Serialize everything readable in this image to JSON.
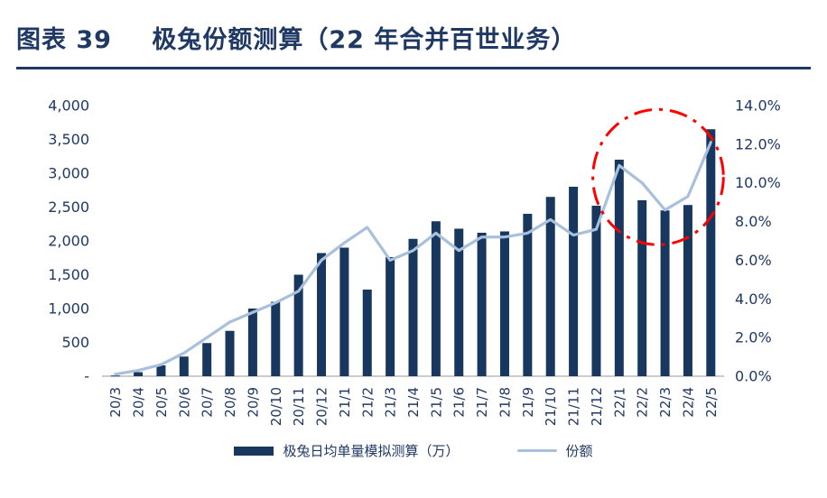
{
  "header": {
    "label": "图表 39",
    "title": "极兔份额测算（22 年合并百世业务）"
  },
  "legend": {
    "bar_label": "极兔日均单量模拟测算（万）",
    "line_label": "份额"
  },
  "colors": {
    "title": "#1F3864",
    "bar": "#17375E",
    "line": "#A9C0DC",
    "axis_text": "#1F3864",
    "axis_line": "#9A9A9A",
    "annotation": "#FF0000",
    "background": "#FFFFFF"
  },
  "chart_data": {
    "type": "bar",
    "subtype": "combo-bar-line",
    "title": "极兔份额测算（22 年合并百世业务）",
    "categories": [
      "20/3",
      "20/4",
      "20/5",
      "20/6",
      "20/7",
      "20/8",
      "20/9",
      "20/10",
      "20/11",
      "20/12",
      "21/1",
      "21/2",
      "21/3",
      "21/4",
      "21/5",
      "21/6",
      "21/7",
      "21/8",
      "21/9",
      "21/10",
      "21/11",
      "21/12",
      "22/1",
      "22/2",
      "22/3",
      "22/4",
      "22/5"
    ],
    "series": [
      {
        "name": "极兔日均单量模拟测算（万）",
        "type": "bar",
        "axis": "left",
        "values": [
          10,
          60,
          160,
          290,
          490,
          670,
          1000,
          1100,
          1500,
          1820,
          1900,
          1280,
          1760,
          2030,
          2290,
          2180,
          2120,
          2140,
          2400,
          2650,
          2800,
          2520,
          3200,
          2600,
          2450,
          2530,
          3650
        ]
      },
      {
        "name": "份额",
        "type": "line",
        "axis": "right",
        "values": [
          0.1,
          0.3,
          0.6,
          1.2,
          2.0,
          2.8,
          3.3,
          3.8,
          4.4,
          6.0,
          6.9,
          7.7,
          6.0,
          6.5,
          7.4,
          6.5,
          7.2,
          7.2,
          7.4,
          8.1,
          7.3,
          7.6,
          10.9,
          10.0,
          8.6,
          9.3,
          12.1
        ]
      }
    ],
    "left_axis": {
      "min": 0,
      "max": 4000,
      "step": 500,
      "tick_labels": [
        "-",
        "500",
        "1,000",
        "1,500",
        "2,000",
        "2,500",
        "3,000",
        "3,500",
        "4,000"
      ]
    },
    "right_axis": {
      "min": 0,
      "max": 14,
      "step": 2,
      "tick_labels": [
        "0.0%",
        "2.0%",
        "4.0%",
        "6.0%",
        "8.0%",
        "10.0%",
        "12.0%",
        "14.0%"
      ]
    },
    "grid": false,
    "legend_position": "bottom",
    "annotation": {
      "shape": "dash-dot-ellipse",
      "color": "#FF0000",
      "center_index": 23.7,
      "center_pct": 10.3,
      "rx_slots": 2.85,
      "ry_pct": 3.5
    }
  }
}
